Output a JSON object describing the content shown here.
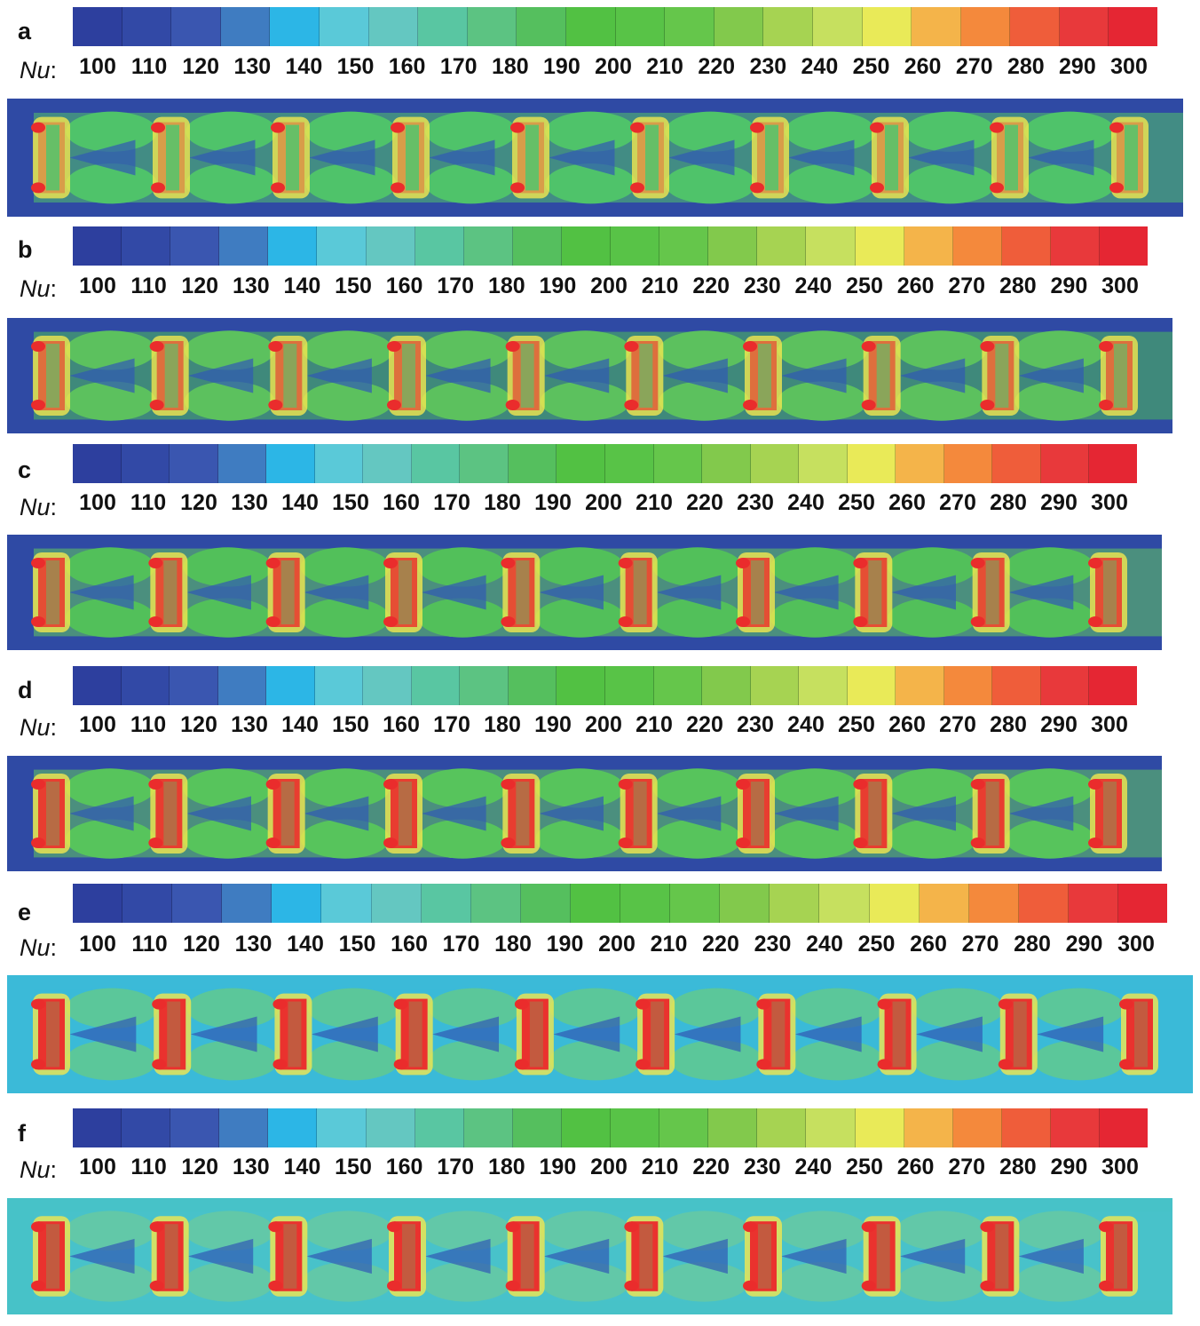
{
  "legend": {
    "variable": "Nu",
    "separator": ":",
    "ticks": [
      "100",
      "110",
      "120",
      "130",
      "140",
      "150",
      "160",
      "170",
      "180",
      "190",
      "200",
      "210",
      "220",
      "230",
      "240",
      "250",
      "260",
      "270",
      "280",
      "290",
      "300"
    ],
    "bands": [
      "#2d3f9e",
      "#3249a6",
      "#3a56b0",
      "#3f7cc1",
      "#2cb6e6",
      "#5ac9d8",
      "#64c7c1",
      "#59c6a2",
      "#5cc382",
      "#55bf5e",
      "#52c143",
      "#58c347",
      "#65c64b",
      "#82c94c",
      "#a6d352",
      "#c6e05f",
      "#e9ea58",
      "#f4b44a",
      "#f4893c",
      "#ef5d3a",
      "#e8393b",
      "#e52633"
    ]
  },
  "panels": [
    {
      "letter": "a",
      "blob": "#4fc36a",
      "band": "#52c36a",
      "hot": "#ea2c2c",
      "bg": "#2f4aa4",
      "hotSize": 0.08
    },
    {
      "letter": "b",
      "blob": "#5cc15e",
      "band": "#4cbe5a",
      "hot": "#ea2c2c",
      "bg": "#2f4aa4",
      "hotSize": 0.35
    },
    {
      "letter": "c",
      "blob": "#52c05a",
      "band": "#62c85e",
      "hot": "#ea2c2c",
      "bg": "#2f4aa4",
      "hotSize": 0.55
    },
    {
      "letter": "d",
      "blob": "#57c45c",
      "band": "#62c85e",
      "hot": "#ea2c2c",
      "bg": "#2f4aa4",
      "hotSize": 0.65
    },
    {
      "letter": "e",
      "blob": "#5bc79a",
      "band": "#3bbad8",
      "hot": "#ea2c2c",
      "bg": "#3bbad8",
      "hotSize": 0.72
    },
    {
      "letter": "f",
      "blob": "#62c8a8",
      "band": "#49c2cc",
      "hot": "#ea2c2c",
      "bg": "#47c2c8",
      "hotSize": 0.72
    }
  ]
}
